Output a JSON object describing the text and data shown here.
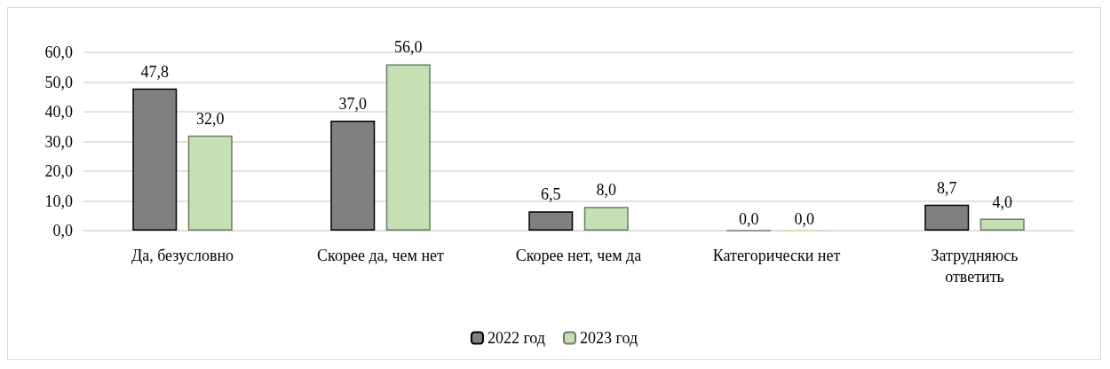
{
  "chart_data": {
    "type": "bar",
    "categories": [
      "Да, безусловно",
      "Скорее да, чем нет",
      "Скорее нет, чем да",
      "Категорически нет",
      "Затрудняюсь ответить"
    ],
    "series": [
      {
        "name": "2022 год",
        "color": "#808080",
        "values": [
          47.8,
          37.0,
          6.5,
          0.0,
          8.7
        ],
        "value_labels": [
          "47,8",
          "37,0",
          "6,5",
          "0,0",
          "8,7"
        ]
      },
      {
        "name": "2023 год",
        "color": "#c5e0b4",
        "values": [
          32.0,
          56.0,
          8.0,
          0.0,
          4.0
        ],
        "value_labels": [
          "32,0",
          "56,0",
          "8,0",
          "0,0",
          "4,0"
        ]
      }
    ],
    "ylim": [
      0,
      60
    ],
    "yticks": [
      {
        "value": 0,
        "label": "0,0"
      },
      {
        "value": 10,
        "label": "10,0"
      },
      {
        "value": 20,
        "label": "20,0"
      },
      {
        "value": 30,
        "label": "30,0"
      },
      {
        "value": 40,
        "label": "40,0"
      },
      {
        "value": 50,
        "label": "50,0"
      },
      {
        "value": 60,
        "label": "60,0"
      }
    ],
    "grid": "y",
    "legend": "bottom"
  }
}
